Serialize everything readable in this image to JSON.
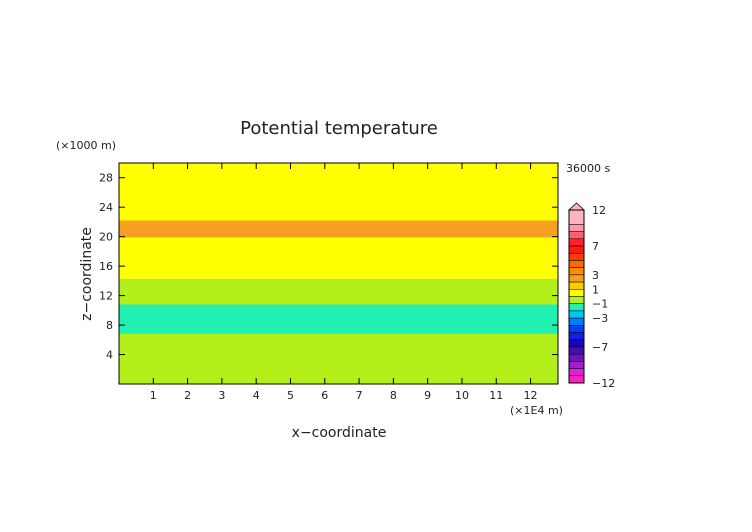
{
  "chart_data": {
    "type": "heatmap",
    "title": "Potential temperature",
    "xlabel": "x−coordinate",
    "ylabel": "z−coordinate",
    "x_unit": "(×1E4 m)",
    "y_unit": "(×1000 m)",
    "time_label": "36000 s",
    "xlim": [
      0,
      12.8
    ],
    "ylim": [
      0,
      30
    ],
    "x_ticks": [
      "1",
      "2",
      "3",
      "4",
      "5",
      "6",
      "7",
      "8",
      "9",
      "10",
      "11",
      "12"
    ],
    "y_ticks": [
      "4",
      "8",
      "12",
      "16",
      "20",
      "24",
      "28"
    ],
    "bands": [
      {
        "z_bottom": 0,
        "z_top": 6.8,
        "color": "#b3f01a"
      },
      {
        "z_bottom": 6.8,
        "z_top": 10.8,
        "color": "#22f0b0"
      },
      {
        "z_bottom": 10.8,
        "z_top": 14.3,
        "color": "#b3f01a"
      },
      {
        "z_bottom": 14.3,
        "z_top": 19.9,
        "color": "#ffff00"
      },
      {
        "z_bottom": 19.9,
        "z_top": 22.2,
        "color": "#f5a020"
      },
      {
        "z_bottom": 22.2,
        "z_top": 30,
        "color": "#ffff00"
      }
    ],
    "colorbar": {
      "labels": [
        {
          "value": 12,
          "text": "12"
        },
        {
          "value": 7,
          "text": "7"
        },
        {
          "value": 3,
          "text": "3"
        },
        {
          "value": 1,
          "text": "1"
        },
        {
          "value": -1,
          "text": "−1"
        },
        {
          "value": -3,
          "text": "−3"
        },
        {
          "value": -7,
          "text": "−7"
        },
        {
          "value": -12,
          "text": "−12"
        }
      ],
      "levels": [
        {
          "lo": 10,
          "hi": 12,
          "color": "#ffb3c0"
        },
        {
          "lo": 9,
          "hi": 10,
          "color": "#ff9aa8"
        },
        {
          "lo": 8,
          "hi": 9,
          "color": "#ff6070"
        },
        {
          "lo": 7,
          "hi": 8,
          "color": "#ff2030"
        },
        {
          "lo": 6,
          "hi": 7,
          "color": "#ff1a10"
        },
        {
          "lo": 5,
          "hi": 6,
          "color": "#ff3c00"
        },
        {
          "lo": 4,
          "hi": 5,
          "color": "#ff6a00"
        },
        {
          "lo": 3,
          "hi": 4,
          "color": "#ff8c00"
        },
        {
          "lo": 2,
          "hi": 3,
          "color": "#f5a020"
        },
        {
          "lo": 1,
          "hi": 2,
          "color": "#ffcc00"
        },
        {
          "lo": 0,
          "hi": 1,
          "color": "#ffff00"
        },
        {
          "lo": -1,
          "hi": 0,
          "color": "#b3f01a"
        },
        {
          "lo": -2,
          "hi": -1,
          "color": "#22f0b0"
        },
        {
          "lo": -3,
          "hi": -2,
          "color": "#00c8ff"
        },
        {
          "lo": -4,
          "hi": -3,
          "color": "#0080ff"
        },
        {
          "lo": -5,
          "hi": -4,
          "color": "#0040ff"
        },
        {
          "lo": -6,
          "hi": -5,
          "color": "#1020e0"
        },
        {
          "lo": -7,
          "hi": -6,
          "color": "#2000c0"
        },
        {
          "lo": -8,
          "hi": -7,
          "color": "#4010b0"
        },
        {
          "lo": -9,
          "hi": -8,
          "color": "#7010c0"
        },
        {
          "lo": -10,
          "hi": -9,
          "color": "#a020d0"
        },
        {
          "lo": -11,
          "hi": -10,
          "color": "#e020e0"
        },
        {
          "lo": -12,
          "hi": -11,
          "color": "#ff20c0"
        }
      ]
    }
  }
}
